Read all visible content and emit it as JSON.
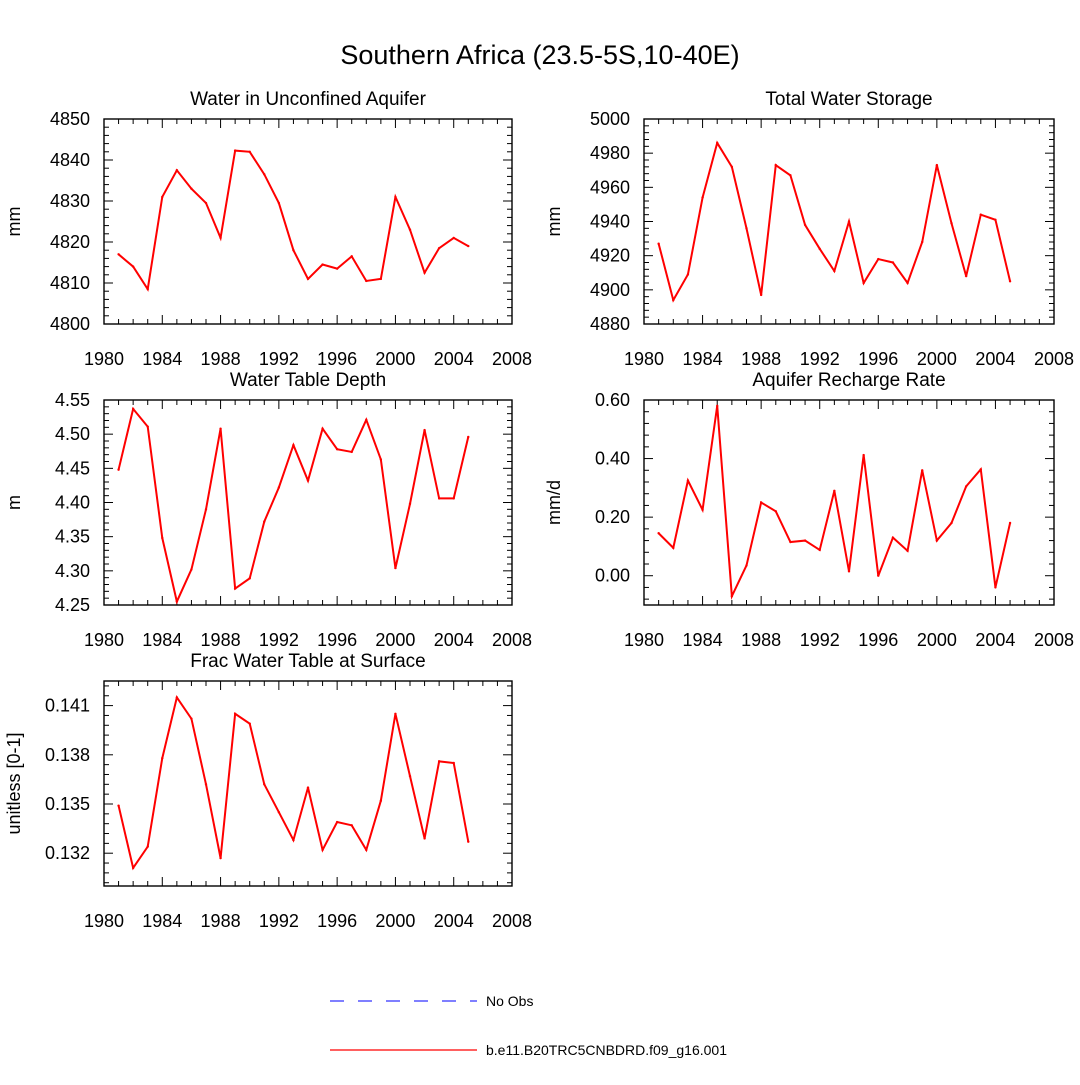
{
  "figure": {
    "title": "Southern Africa (23.5-5S,10-40E)"
  },
  "colors": {
    "model_line": "#ff0000",
    "obs_line": "#3333ff",
    "axis": "#000000"
  },
  "legend": {
    "entries": [
      {
        "label": "No Obs",
        "style": "dashed",
        "color": "#3333ff"
      },
      {
        "label": "b.e11.B20TRC5CNBDRD.f09_g16.001",
        "style": "solid",
        "color": "#ff0000"
      }
    ]
  },
  "chart_data": [
    {
      "type": "line",
      "title": "Water in Unconfined Aquifer",
      "xlabel": "",
      "ylabel": "mm",
      "xlim": [
        1980,
        2008
      ],
      "ylim": [
        4800,
        4850
      ],
      "xticks": [
        1980,
        1984,
        1988,
        1992,
        1996,
        2000,
        2004,
        2008
      ],
      "yticks": [
        4800,
        4810,
        4820,
        4830,
        4840,
        4850
      ],
      "ytick_labels": [
        "4800",
        "4810",
        "4820",
        "4830",
        "4840",
        "4850"
      ],
      "x": [
        1981,
        1982,
        1983,
        1984,
        1985,
        1986,
        1987,
        1988,
        1989,
        1990,
        1991,
        1992,
        1993,
        1994,
        1995,
        1996,
        1997,
        1998,
        1999,
        2000,
        2001,
        2002,
        2003,
        2004,
        2005
      ],
      "series": [
        {
          "name": "b.e11.B20TRC5CNBDRD.f09_g16.001",
          "values": [
            4817,
            4814,
            4808.5,
            4831,
            4837.5,
            4833,
            4829.5,
            4821,
            4842.3,
            4842,
            4836.5,
            4829.5,
            4818,
            4811,
            4814.5,
            4813.5,
            4816.5,
            4810.5,
            4811,
            4831,
            4823,
            4812.5,
            4818.5,
            4821,
            4819
          ]
        }
      ]
    },
    {
      "type": "line",
      "title": "Total Water Storage",
      "xlabel": "",
      "ylabel": "mm",
      "xlim": [
        1980,
        2008
      ],
      "ylim": [
        4880,
        5000
      ],
      "xticks": [
        1980,
        1984,
        1988,
        1992,
        1996,
        2000,
        2004,
        2008
      ],
      "yticks": [
        4880,
        4900,
        4920,
        4940,
        4960,
        4980,
        5000
      ],
      "ytick_labels": [
        "4880",
        "4900",
        "4920",
        "4940",
        "4960",
        "4980",
        "5000"
      ],
      "x": [
        1981,
        1982,
        1983,
        1984,
        1985,
        1986,
        1987,
        1988,
        1989,
        1990,
        1991,
        1992,
        1993,
        1994,
        1995,
        1996,
        1997,
        1998,
        1999,
        2000,
        2001,
        2002,
        2003,
        2004,
        2005
      ],
      "series": [
        {
          "name": "b.e11.B20TRC5CNBDRD.f09_g16.001",
          "values": [
            4927,
            4894,
            4909,
            4954,
            4986,
            4972,
            4936,
            4897,
            4973,
            4967,
            4938,
            4924,
            4911,
            4940,
            4904,
            4918,
            4916,
            4904,
            4928,
            4973,
            4939,
            4908,
            4944,
            4941,
            4905
          ]
        }
      ]
    },
    {
      "type": "line",
      "title": "Water Table Depth",
      "xlabel": "",
      "ylabel": "m",
      "xlim": [
        1980,
        2008
      ],
      "ylim": [
        4.25,
        4.55
      ],
      "xticks": [
        1980,
        1984,
        1988,
        1992,
        1996,
        2000,
        2004,
        2008
      ],
      "yticks": [
        4.25,
        4.3,
        4.35,
        4.4,
        4.45,
        4.5,
        4.55
      ],
      "ytick_labels": [
        "4.25",
        "4.30",
        "4.35",
        "4.40",
        "4.45",
        "4.50",
        "4.55"
      ],
      "x": [
        1981,
        1982,
        1983,
        1984,
        1985,
        1986,
        1987,
        1988,
        1989,
        1990,
        1991,
        1992,
        1993,
        1994,
        1995,
        1996,
        1997,
        1998,
        1999,
        2000,
        2001,
        2002,
        2003,
        2004,
        2005
      ],
      "series": [
        {
          "name": "b.e11.B20TRC5CNBDRD.f09_g16.001",
          "values": [
            4.448,
            4.537,
            4.511,
            4.348,
            4.255,
            4.302,
            4.39,
            4.508,
            4.274,
            4.289,
            4.372,
            4.422,
            4.484,
            4.432,
            4.508,
            4.478,
            4.474,
            4.521,
            4.463,
            4.304,
            4.398,
            4.506,
            4.406,
            4.406,
            4.496
          ]
        }
      ]
    },
    {
      "type": "line",
      "title": "Aquifer Recharge Rate",
      "xlabel": "",
      "ylabel": "mm/d",
      "xlim": [
        1980,
        2008
      ],
      "ylim": [
        -0.1,
        0.6
      ],
      "xticks": [
        1980,
        1984,
        1988,
        1992,
        1996,
        2000,
        2004,
        2008
      ],
      "yticks": [
        0.0,
        0.2,
        0.4,
        0.6
      ],
      "ytick_labels": [
        "0.00",
        "0.20",
        "0.40",
        "0.60"
      ],
      "x": [
        1981,
        1982,
        1983,
        1984,
        1985,
        1986,
        1987,
        1988,
        1989,
        1990,
        1991,
        1992,
        1993,
        1994,
        1995,
        1996,
        1997,
        1998,
        1999,
        2000,
        2001,
        2002,
        2003,
        2004,
        2005
      ],
      "series": [
        {
          "name": "b.e11.B20TRC5CNBDRD.f09_g16.001",
          "values": [
            0.145,
            0.095,
            0.325,
            0.225,
            0.58,
            -0.07,
            0.035,
            0.25,
            0.22,
            0.115,
            0.12,
            0.088,
            0.29,
            0.015,
            0.412,
            0.0,
            0.13,
            0.085,
            0.36,
            0.12,
            0.18,
            0.305,
            0.363,
            -0.04,
            0.18
          ]
        }
      ]
    },
    {
      "type": "line",
      "title": "Frac Water Table at Surface",
      "xlabel": "",
      "ylabel": "unitless [0-1]",
      "xlim": [
        1980,
        2008
      ],
      "ylim": [
        0.13,
        0.1425
      ],
      "xticks": [
        1980,
        1984,
        1988,
        1992,
        1996,
        2000,
        2004,
        2008
      ],
      "yticks": [
        0.132,
        0.135,
        0.138,
        0.141
      ],
      "ytick_labels": [
        "0.132",
        "0.135",
        "0.138",
        "0.141"
      ],
      "x": [
        1981,
        1982,
        1983,
        1984,
        1985,
        1986,
        1987,
        1988,
        1989,
        1990,
        1991,
        1992,
        1993,
        1994,
        1995,
        1996,
        1997,
        1998,
        1999,
        2000,
        2001,
        2002,
        2003,
        2004,
        2005
      ],
      "series": [
        {
          "name": "b.e11.B20TRC5CNBDRD.f09_g16.001",
          "values": [
            0.1349,
            0.1311,
            0.1324,
            0.1378,
            0.1415,
            0.1402,
            0.1362,
            0.1317,
            0.1405,
            0.1399,
            0.1362,
            0.1345,
            0.1328,
            0.136,
            0.1322,
            0.1339,
            0.1337,
            0.1322,
            0.1352,
            0.1405,
            0.1367,
            0.1329,
            0.1376,
            0.1375,
            0.1327
          ]
        }
      ]
    }
  ]
}
